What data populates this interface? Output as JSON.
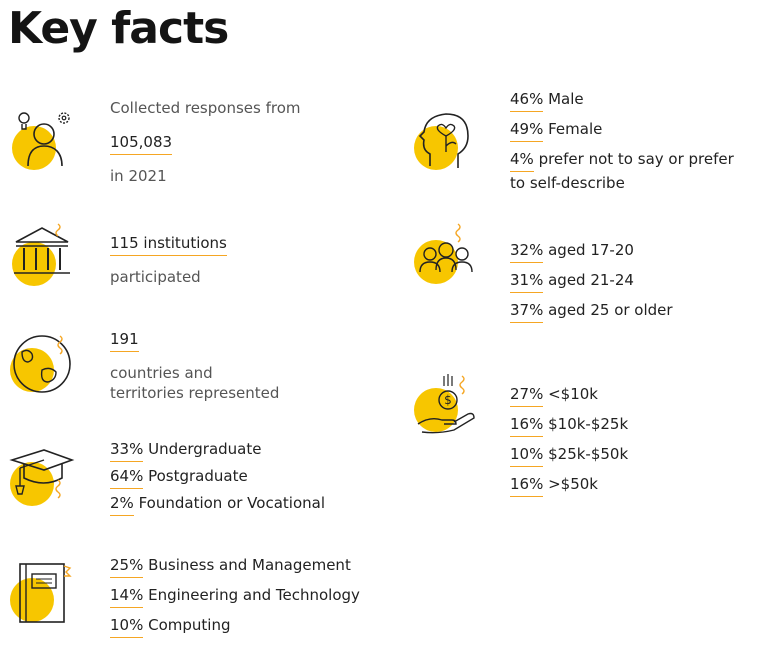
{
  "title": "Key facts",
  "colors": {
    "accent": "#f7c600",
    "underline": "#f5a623",
    "text": "#222222",
    "muted": "#555555"
  },
  "left": {
    "responses": {
      "icon": "person-lightbulb-gear-icon",
      "line1": "Collected responses from",
      "number": "105,083",
      "line3": "in 2021"
    },
    "institutions": {
      "icon": "institution-building-icon",
      "number": "115 institutions",
      "line2": "participated"
    },
    "countries": {
      "icon": "globe-icon",
      "number": "191",
      "line2": "countries and",
      "line3": "territories represented"
    },
    "study_level": {
      "icon": "graduation-cap-icon",
      "items": [
        {
          "lead": "33%",
          "rest": " Undergraduate"
        },
        {
          "lead": "64%",
          "rest": " Postgraduate"
        },
        {
          "lead": "2%",
          "rest": " Foundation or Vocational"
        }
      ]
    },
    "subjects": {
      "icon": "book-icon",
      "items": [
        {
          "lead": "25%",
          "rest": " Business and Management"
        },
        {
          "lead": "14%",
          "rest": " Engineering and Technology"
        },
        {
          "lead": "10%",
          "rest": " Computing"
        }
      ]
    }
  },
  "right": {
    "gender": {
      "icon": "head-heart-icon",
      "items": [
        {
          "lead": "46%",
          "rest": " Male"
        },
        {
          "lead": "49%",
          "rest": " Female"
        },
        {
          "lead": "4%",
          "rest": " prefer not to say or prefer",
          "cont": "to self-describe"
        }
      ]
    },
    "age": {
      "icon": "group-people-icon",
      "items": [
        {
          "lead": "32%",
          "rest": " aged 17-20"
        },
        {
          "lead": "31%",
          "rest": " aged 21-24"
        },
        {
          "lead": "37%",
          "rest": " aged 25 or older"
        }
      ]
    },
    "income": {
      "icon": "hand-coin-icon",
      "items": [
        {
          "lead": "27%",
          "rest": " <$10k"
        },
        {
          "lead": "16%",
          "rest": " $10k-$25k"
        },
        {
          "lead": "10%",
          "rest": " $25k-$50k"
        },
        {
          "lead": "16%",
          "rest": " >$50k"
        }
      ]
    }
  }
}
